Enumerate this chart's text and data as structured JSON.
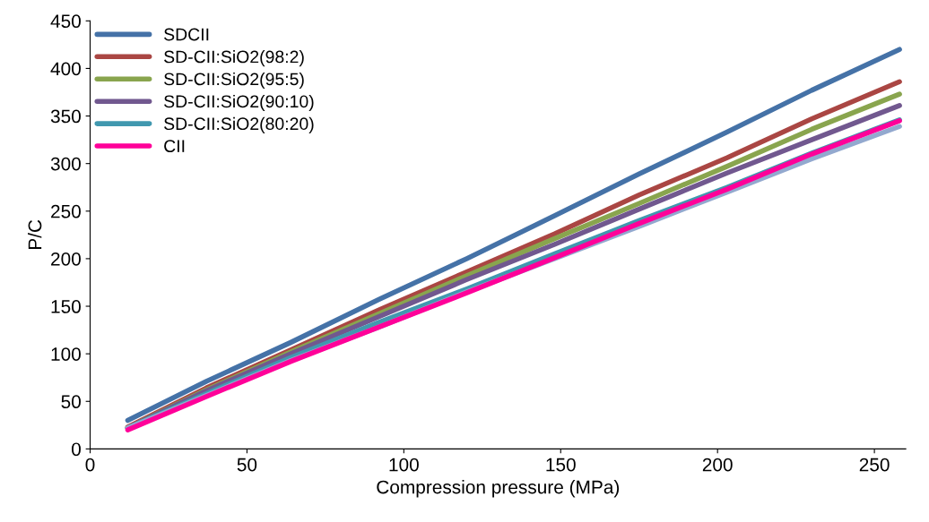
{
  "chart_data": {
    "type": "line",
    "xlabel": "Compression pressure (MPa)",
    "ylabel": "P/C",
    "x": [
      12,
      37,
      64,
      92,
      120,
      148,
      175,
      203,
      230,
      258
    ],
    "series": [
      {
        "name": "SDCII",
        "color": "#4572a7",
        "values": [
          30,
          71,
          112,
          157,
          200,
          245,
          289,
          333,
          377,
          420
        ]
      },
      {
        "name": "SD-CII:SiO2(98:2)",
        "color": "#aa4643",
        "values": [
          23,
          64,
          104,
          146,
          186,
          226,
          267,
          306,
          347,
          386
        ]
      },
      {
        "name": "SD-CII:SiO2(95:5)",
        "color": "#89a54e",
        "values": [
          22,
          62,
          102,
          142,
          182,
          221,
          258,
          297,
          336,
          373
        ]
      },
      {
        "name": "SD-CII:SiO2(90:10)",
        "color": "#71588f",
        "values": [
          22,
          61,
          100,
          139,
          178,
          215,
          252,
          290,
          325,
          361
        ]
      },
      {
        "name": "SD-CII:SiO2(80:20)",
        "color": "#4198af",
        "values": [
          22,
          58,
          96,
          133,
          168,
          205,
          240,
          275,
          311,
          346
        ]
      },
      {
        "color": "#93a9cf",
        "values": [
          22,
          56,
          93,
          128,
          165,
          200,
          234,
          270,
          305,
          339
        ]
      },
      {
        "name": "CII",
        "color": "#ff0099",
        "values": [
          20,
          55,
          92,
          128,
          164,
          201,
          237,
          273,
          310,
          345
        ]
      }
    ],
    "xlim": [
      0,
      260
    ],
    "xticks": [
      0,
      50,
      100,
      150,
      200,
      250
    ],
    "ylim": [
      0,
      450
    ],
    "yticks": [
      0,
      50,
      100,
      150,
      200,
      250,
      300,
      350,
      400,
      450
    ],
    "legend": "top left",
    "grid": false,
    "marker": "none",
    "line_style": "solid"
  }
}
